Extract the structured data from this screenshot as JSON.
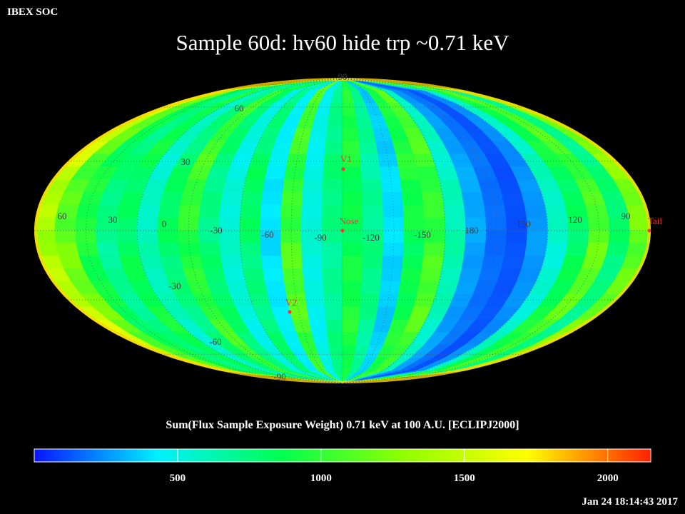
{
  "header": {
    "org": "IBEX SOC",
    "title": "Sample 60d: hv60 hide trp ~0.71 keV"
  },
  "colorbar": {
    "title": "Sum(Flux Sample Exposure Weight)  0.71 keV at 100 A.U. [ECLIPJ2000]",
    "range": [
      0,
      2150
    ],
    "ticks": [
      500,
      1000,
      1500,
      2000
    ],
    "tick_labels": [
      "500",
      "1000",
      "1500",
      "2000"
    ],
    "colormap": [
      "#0a14ff",
      "#00f0ff",
      "#00ff50",
      "#90ff00",
      "#ffff00",
      "#ff2000"
    ]
  },
  "map": {
    "projection": "mollweide",
    "lat_labels": [
      "90",
      "60",
      "30",
      "-30",
      "-60",
      "-90"
    ],
    "lon_labels": [
      "60",
      "30",
      "0",
      "-30",
      "-60",
      "-90",
      "-120",
      "-150",
      "180",
      "150",
      "120",
      "90"
    ],
    "markers": [
      {
        "name": "V1",
        "color": "#ff3030"
      },
      {
        "name": "Nose",
        "color": "#ff3030"
      },
      {
        "name": "V2",
        "color": "#ff3030"
      },
      {
        "name": "Tail",
        "color": "#ff3030"
      }
    ],
    "band_values": [
      1450,
      1150,
      900,
      720,
      850,
      580,
      780,
      1000,
      760,
      520,
      780,
      420,
      1050,
      500,
      720,
      900,
      700,
      380,
      900,
      1050,
      600,
      280,
      180,
      120,
      250,
      560,
      850,
      1100,
      750,
      1200
    ]
  },
  "footer": {
    "timestamp": "Jan 24 18:14:43 2017"
  }
}
